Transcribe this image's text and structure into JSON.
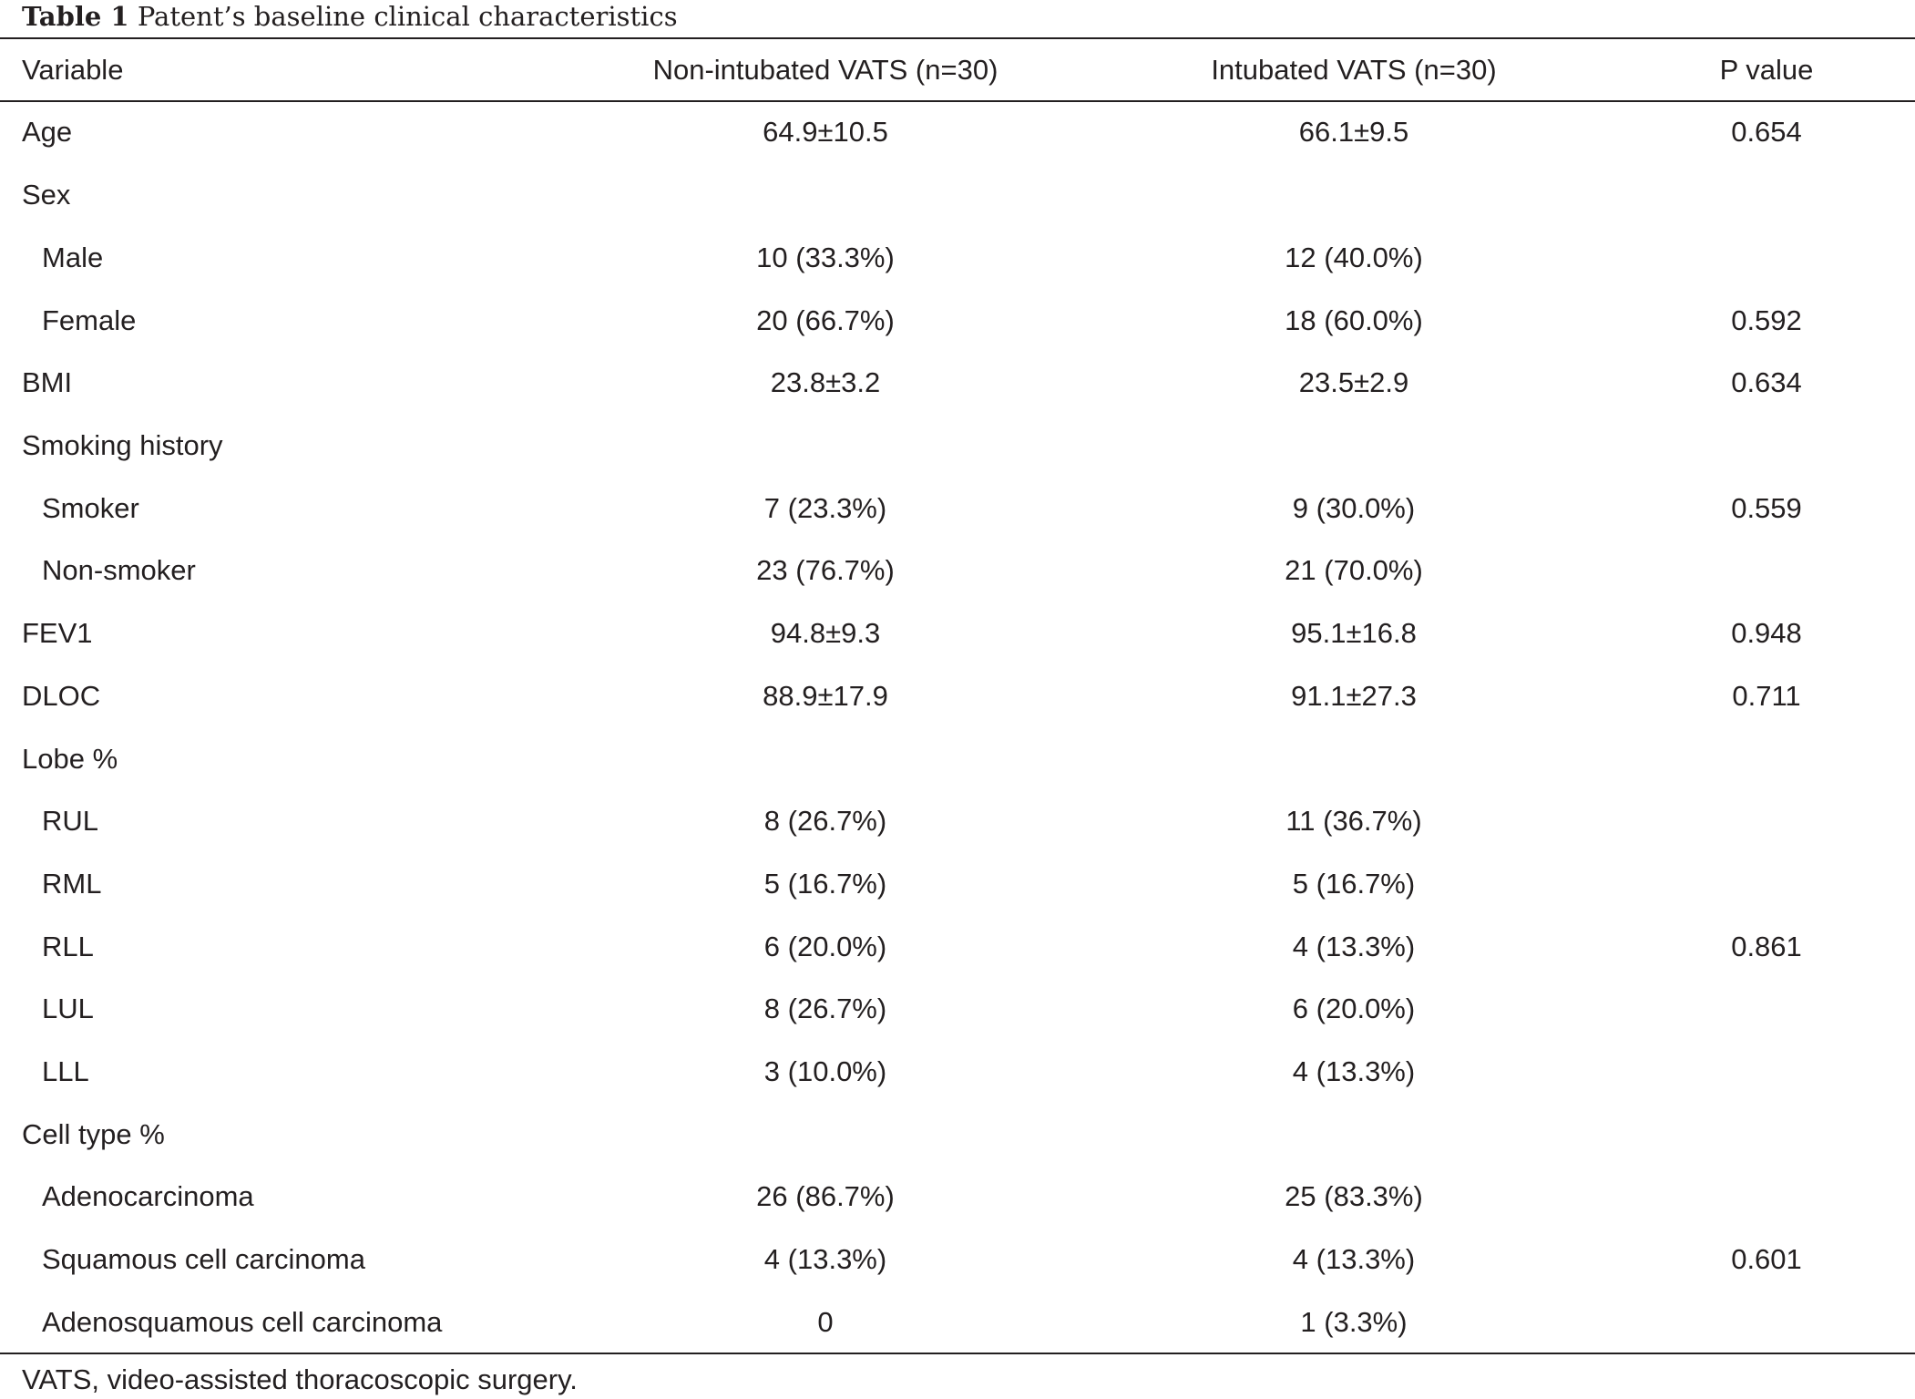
{
  "caption": {
    "label": "Table 1",
    "text": "Patent’s baseline clinical characteristics"
  },
  "headers": {
    "variable": "Variable",
    "non_intubated": "Non-intubated VATS (n=30)",
    "intubated": "Intubated VATS (n=30)",
    "p_value": "P value"
  },
  "rows": [
    {
      "variable": "Age",
      "non_intubated": "64.9±10.5",
      "intubated": "66.1±9.5",
      "p_value": "0.654"
    },
    {
      "variable": "Sex",
      "non_intubated": "",
      "intubated": "",
      "p_value": ""
    },
    {
      "variable": "Male",
      "non_intubated": "10 (33.3%)",
      "intubated": "12 (40.0%)",
      "p_value": ""
    },
    {
      "variable": "Female",
      "non_intubated": "20 (66.7%)",
      "intubated": "18 (60.0%)",
      "p_value": "0.592"
    },
    {
      "variable": "BMI",
      "non_intubated": "23.8±3.2",
      "intubated": "23.5±2.9",
      "p_value": "0.634"
    },
    {
      "variable": "Smoking history",
      "non_intubated": "",
      "intubated": "",
      "p_value": ""
    },
    {
      "variable": "Smoker",
      "non_intubated": "7 (23.3%)",
      "intubated": "9 (30.0%)",
      "p_value": "0.559"
    },
    {
      "variable": "Non-smoker",
      "non_intubated": "23 (76.7%)",
      "intubated": "21 (70.0%)",
      "p_value": ""
    },
    {
      "variable": "FEV1",
      "non_intubated": "94.8±9.3",
      "intubated": "95.1±16.8",
      "p_value": "0.948"
    },
    {
      "variable": "DLOC",
      "non_intubated": "88.9±17.9",
      "intubated": "91.1±27.3",
      "p_value": "0.711"
    },
    {
      "variable": "Lobe %",
      "non_intubated": "",
      "intubated": "",
      "p_value": ""
    },
    {
      "variable": "RUL",
      "non_intubated": "8 (26.7%)",
      "intubated": "11 (36.7%)",
      "p_value": ""
    },
    {
      "variable": "RML",
      "non_intubated": "5 (16.7%)",
      "intubated": "5 (16.7%)",
      "p_value": ""
    },
    {
      "variable": "RLL",
      "non_intubated": "6 (20.0%)",
      "intubated": "4 (13.3%)",
      "p_value": "0.861"
    },
    {
      "variable": "LUL",
      "non_intubated": "8 (26.7%)",
      "intubated": "6 (20.0%)",
      "p_value": ""
    },
    {
      "variable": "LLL",
      "non_intubated": "3 (10.0%)",
      "intubated": "4 (13.3%)",
      "p_value": ""
    },
    {
      "variable": "Cell type %",
      "non_intubated": "",
      "intubated": "",
      "p_value": ""
    },
    {
      "variable": "Adenocarcinoma",
      "non_intubated": "26 (86.7%)",
      "intubated": "25 (83.3%)",
      "p_value": ""
    },
    {
      "variable": "Squamous cell carcinoma",
      "non_intubated": "4 (13.3%)",
      "intubated": "4 (13.3%)",
      "p_value": "0.601"
    },
    {
      "variable": "Adenosquamous cell carcinoma",
      "non_intubated": "0",
      "intubated": "1 (3.3%)",
      "p_value": ""
    }
  ],
  "footnote": "VATS, video-assisted thoracoscopic surgery."
}
